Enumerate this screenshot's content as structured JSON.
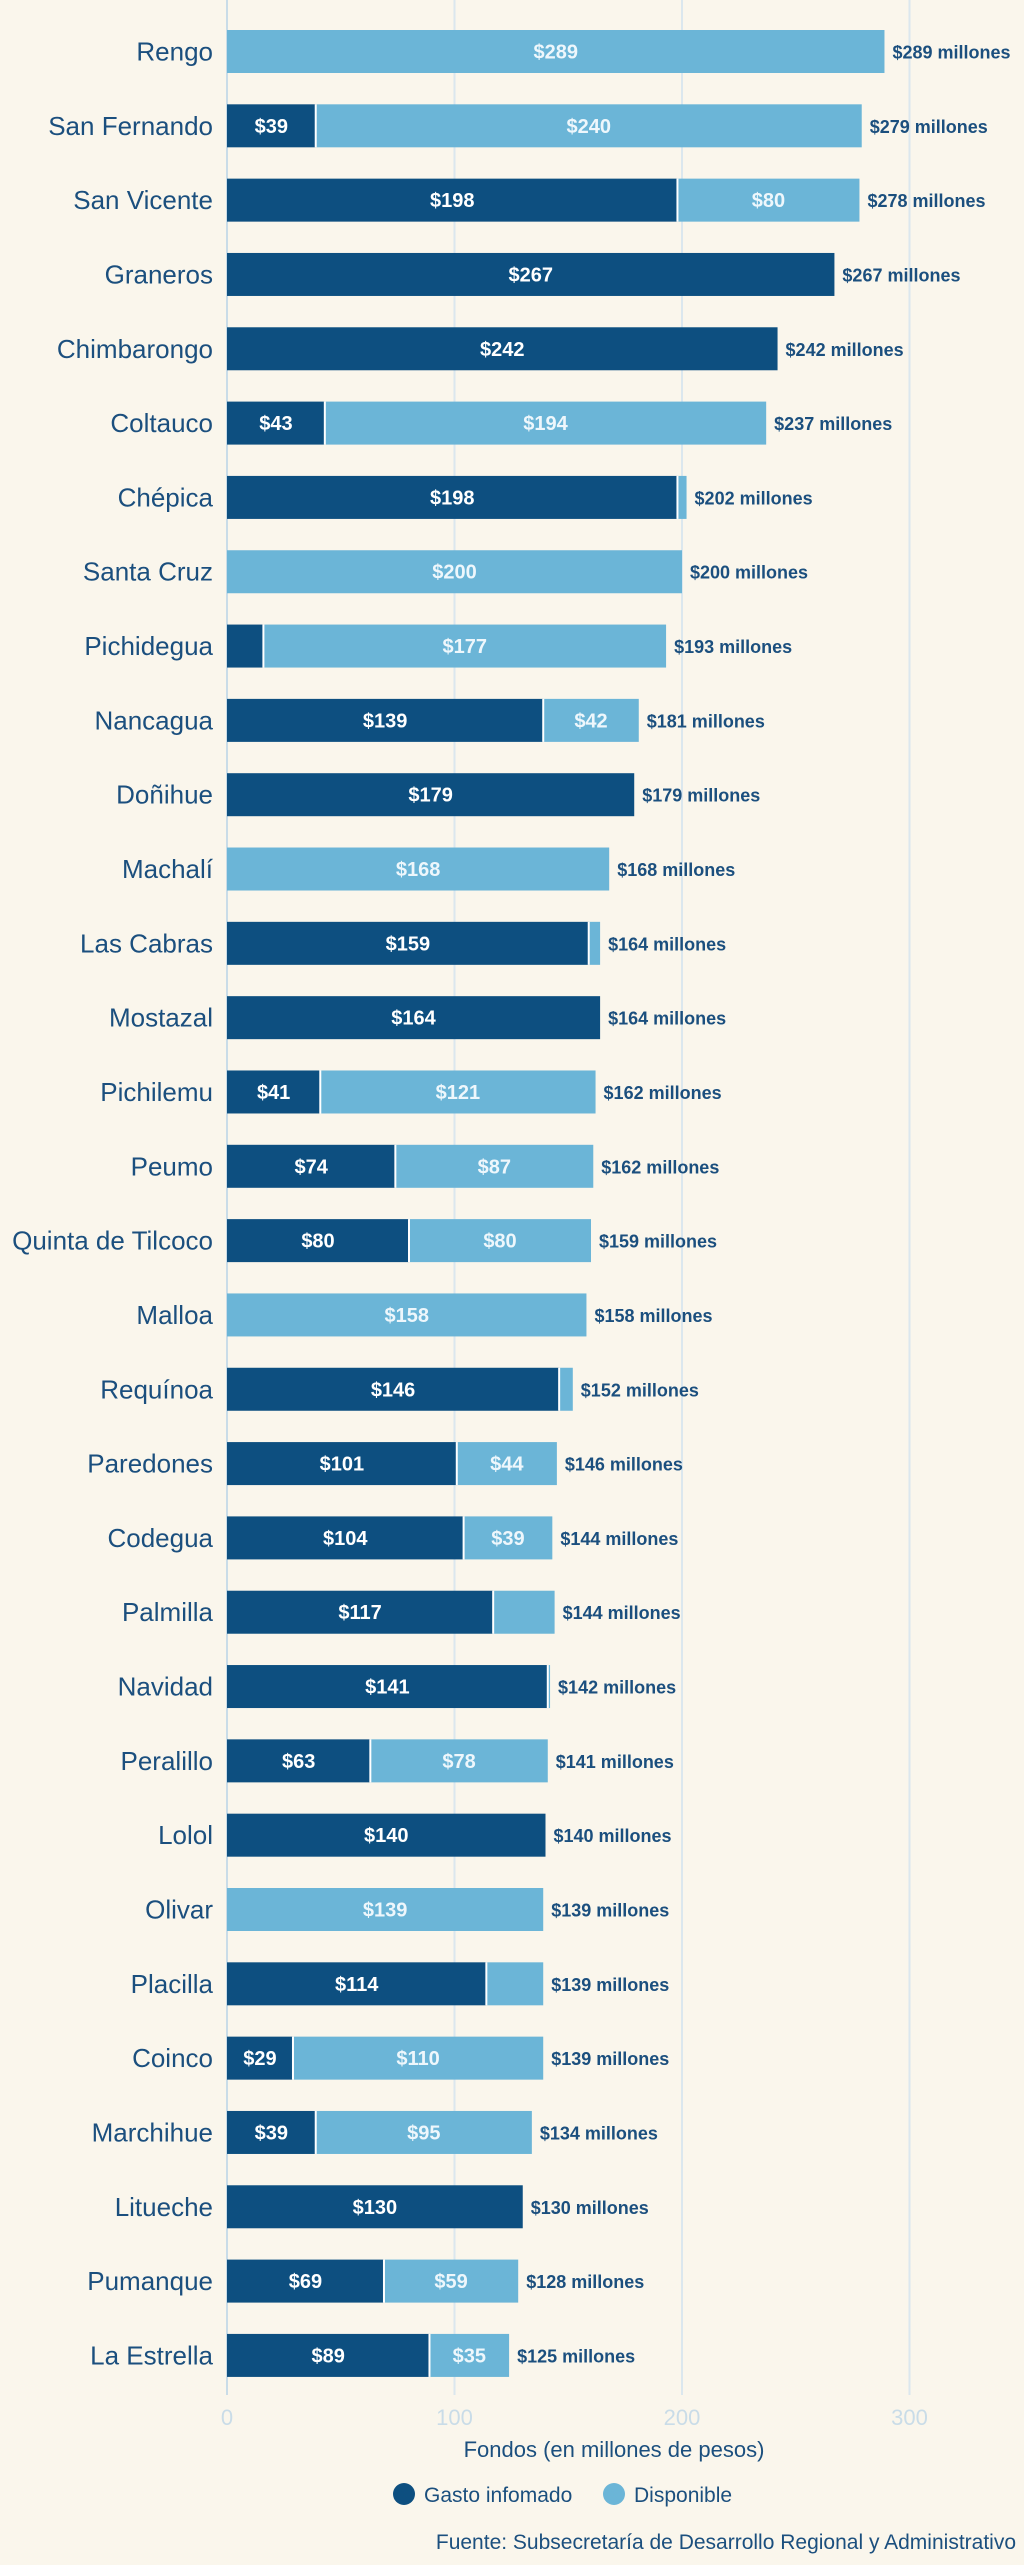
{
  "chart_data": {
    "type": "bar",
    "orientation": "horizontal",
    "stacked": true,
    "categories": [
      "Rengo",
      "San Fernando",
      "San Vicente",
      "Graneros",
      "Chimbarongo",
      "Coltauco",
      "Chépica",
      "Santa Cruz",
      "Pichidegua",
      "Nancagua",
      "Doñihue",
      "Machalí",
      "Las Cabras",
      "Mostazal",
      "Pichilemu",
      "Peumo",
      "Quinta de Tilcoco",
      "Malloa",
      "Requínoa",
      "Paredones",
      "Codegua",
      "Palmilla",
      "Navidad",
      "Peralillo",
      "Lolol",
      "Olivar",
      "Placilla",
      "Coinco",
      "Marchihue",
      "Litueche",
      "Pumanque",
      "La Estrella"
    ],
    "series": [
      {
        "name": "Gasto infomado",
        "color": "#0d4f80",
        "values": [
          0,
          39,
          198,
          267,
          242,
          43,
          198,
          0,
          16,
          139,
          179,
          0,
          159,
          164,
          41,
          74,
          80,
          0,
          146,
          101,
          104,
          117,
          141,
          63,
          140,
          0,
          114,
          29,
          39,
          130,
          69,
          89
        ],
        "labels": [
          "",
          "$39",
          "$198",
          "$267",
          "$242",
          "$43",
          "$198",
          "",
          "",
          "$139",
          "$179",
          "",
          "$159",
          "$164",
          "$41",
          "$74",
          "$80",
          "",
          "$146",
          "$101",
          "$104",
          "$117",
          "$141",
          "$63",
          "$140",
          "",
          "$114",
          "$29",
          "$39",
          "$130",
          "$69",
          "$89"
        ]
      },
      {
        "name": "Disponible",
        "color": "#6bb5d7",
        "values": [
          289,
          240,
          80,
          0,
          0,
          194,
          4,
          200,
          177,
          42,
          0,
          168,
          5,
          0,
          121,
          87,
          80,
          158,
          6,
          44,
          39,
          27,
          1,
          78,
          0,
          139,
          25,
          110,
          95,
          0,
          59,
          35
        ],
        "labels": [
          "$289",
          "$240",
          "$80",
          "",
          "",
          "$194",
          "",
          "$200",
          "$177",
          "$42",
          "",
          "$168",
          "",
          "",
          "$121",
          "$87",
          "$80",
          "$158",
          "",
          "$44",
          "$39",
          "",
          "",
          "$78",
          "",
          "$139",
          "",
          "$110",
          "$95",
          "",
          "$59",
          "$35"
        ]
      }
    ],
    "totals": [
      "$289 millones",
      "$279 millones",
      "$278 millones",
      "$267 millones",
      "$242 millones",
      "$237 millones",
      "$202 millones",
      "$200 millones",
      "$193 millones",
      "$181 millones",
      "$179 millones",
      "$168 millones",
      "$164 millones",
      "$164 millones",
      "$162 millones",
      "$162 millones",
      "$159 millones",
      "$158 millones",
      "$152 millones",
      "$146 millones",
      "$144 millones",
      "$144 millones",
      "$142 millones",
      "$141 millones",
      "$140 millones",
      "$139 millones",
      "$139 millones",
      "$139 millones",
      "$134 millones",
      "$130 millones",
      "$128 millones",
      "$125 millones"
    ],
    "xlabel": "Fondos (en millones de pesos)",
    "xlim": [
      0,
      300
    ],
    "xticks": [
      0,
      100,
      200,
      300
    ],
    "grid": true,
    "legend_position": "bottom-center"
  },
  "source": "Fuente: Subsecretaría de Desarrollo Regional y Administrativo"
}
